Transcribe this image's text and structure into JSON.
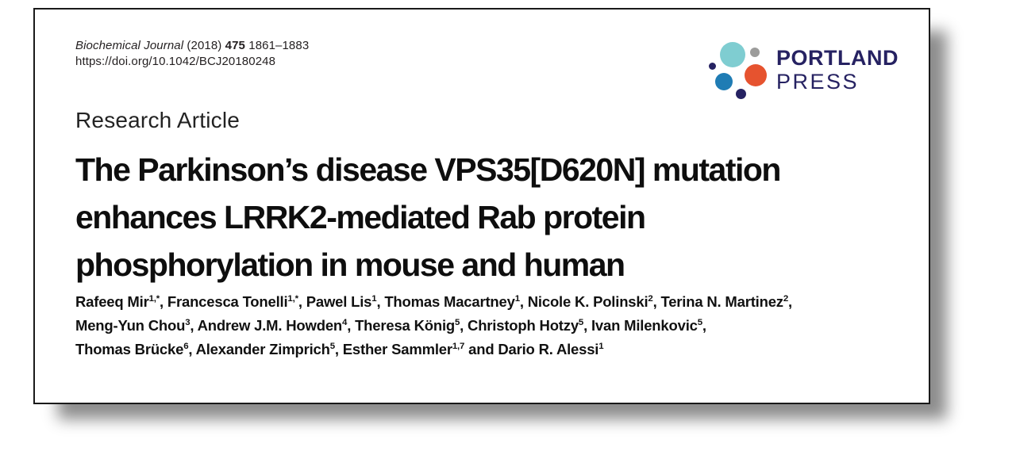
{
  "colors": {
    "navy": "#262262",
    "teal": "#7fcdd1",
    "gray": "#9c9c9b",
    "orange": "#e6532f",
    "blue": "#1f7cb4",
    "title_text": "#0e0e0e"
  },
  "header": {
    "citation": {
      "journal": "Biochemical Journal",
      "year": "(2018)",
      "volume": "475",
      "pages": "1861–1883",
      "doi": "https://doi.org/10.1042/BCJ20180248"
    },
    "logo": {
      "line1": "PORTLAND",
      "line2": "PRESS"
    }
  },
  "article": {
    "kicker": "Research Article",
    "title_lines": [
      "The Parkinson’s disease VPS35[D620N] mutation",
      "enhances LRRK2-mediated Rab protein",
      "phosphorylation in mouse and human"
    ],
    "authors_lines": [
      [
        {
          "t": "Rafeeq Mir"
        },
        {
          "s": "1,*"
        },
        {
          "t": ", Francesca Tonelli"
        },
        {
          "s": "1,*"
        },
        {
          "t": ", Pawel Lis"
        },
        {
          "s": "1"
        },
        {
          "t": ", Thomas Macartney"
        },
        {
          "s": "1"
        },
        {
          "t": ", Nicole K. Polinski"
        },
        {
          "s": "2"
        },
        {
          "t": ", Terina N. Martinez"
        },
        {
          "s": "2"
        },
        {
          "t": ","
        }
      ],
      [
        {
          "t": "Meng-Yun Chou"
        },
        {
          "s": "3"
        },
        {
          "t": ", Andrew J.M. Howden"
        },
        {
          "s": "4"
        },
        {
          "t": ", Theresa König"
        },
        {
          "s": "5"
        },
        {
          "t": ", Christoph Hotzy"
        },
        {
          "s": "5"
        },
        {
          "t": ", Ivan Milenkovic"
        },
        {
          "s": "5"
        },
        {
          "t": ","
        }
      ],
      [
        {
          "t": "Thomas Brücke"
        },
        {
          "s": "6"
        },
        {
          "t": ", Alexander Zimprich"
        },
        {
          "s": "5"
        },
        {
          "t": ", Esther Sammler"
        },
        {
          "s": "1,7"
        },
        {
          "t": " and Dario R. Alessi"
        },
        {
          "s": "1"
        }
      ]
    ]
  }
}
